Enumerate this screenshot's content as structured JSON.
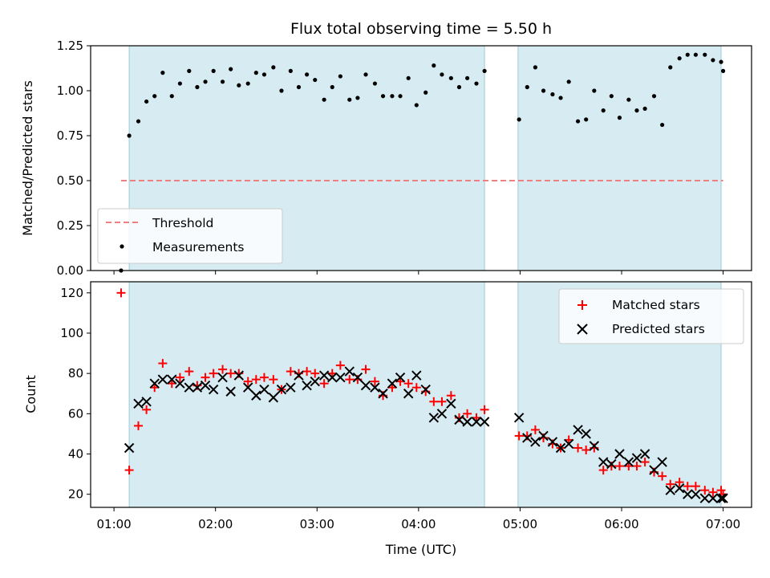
{
  "chart_data": {
    "type": "scatter",
    "title": "Flux total observing time = 5.50 h",
    "x_unit": "hours UTC",
    "xlim": [
      0.77,
      7.28
    ],
    "x_ticks": [
      {
        "value": 1,
        "label": "01:00"
      },
      {
        "value": 2,
        "label": "02:00"
      },
      {
        "value": 3,
        "label": "03:00"
      },
      {
        "value": 4,
        "label": "04:00"
      },
      {
        "value": 5,
        "label": "05:00"
      },
      {
        "value": 6,
        "label": "06:00"
      },
      {
        "value": 7,
        "label": "07:00"
      }
    ],
    "xlabel": "Time (UTC)",
    "shaded_intervals": [
      [
        1.15,
        4.65
      ],
      [
        4.98,
        6.98
      ]
    ],
    "top_panel": {
      "ylabel": "Matched/Predicted stars",
      "ylim": [
        0,
        1.25
      ],
      "y_ticks": [
        {
          "value": 0,
          "label": "0.00"
        },
        {
          "value": 0.25,
          "label": "0.25"
        },
        {
          "value": 0.5,
          "label": "0.50"
        },
        {
          "value": 0.75,
          "label": "0.75"
        },
        {
          "value": 1.0,
          "label": "1.00"
        },
        {
          "value": 1.25,
          "label": "1.25"
        }
      ],
      "threshold": {
        "name": "Threshold",
        "y": 0.5,
        "x_range": [
          1.07,
          7.0
        ],
        "color": "#f08080"
      },
      "legend": {
        "position": "lower-left",
        "entries": [
          "Threshold",
          "Measurements"
        ]
      },
      "series": [
        {
          "name": "Measurements",
          "color": "#000000",
          "points": [
            [
              1.07,
              0.0
            ],
            [
              1.15,
              0.75
            ],
            [
              1.24,
              0.83
            ],
            [
              1.32,
              0.94
            ],
            [
              1.4,
              0.97
            ],
            [
              1.48,
              1.1
            ],
            [
              1.57,
              0.97
            ],
            [
              1.65,
              1.04
            ],
            [
              1.74,
              1.11
            ],
            [
              1.82,
              1.02
            ],
            [
              1.9,
              1.05
            ],
            [
              1.98,
              1.11
            ],
            [
              2.07,
              1.05
            ],
            [
              2.15,
              1.12
            ],
            [
              2.23,
              1.03
            ],
            [
              2.32,
              1.04
            ],
            [
              2.4,
              1.1
            ],
            [
              2.48,
              1.09
            ],
            [
              2.57,
              1.13
            ],
            [
              2.65,
              1.0
            ],
            [
              2.74,
              1.11
            ],
            [
              2.82,
              1.02
            ],
            [
              2.9,
              1.09
            ],
            [
              2.98,
              1.06
            ],
            [
              3.07,
              0.95
            ],
            [
              3.15,
              1.02
            ],
            [
              3.23,
              1.08
            ],
            [
              3.32,
              0.95
            ],
            [
              3.4,
              0.96
            ],
            [
              3.48,
              1.09
            ],
            [
              3.57,
              1.04
            ],
            [
              3.65,
              0.97
            ],
            [
              3.74,
              0.97
            ],
            [
              3.82,
              0.97
            ],
            [
              3.9,
              1.07
            ],
            [
              3.98,
              0.92
            ],
            [
              4.07,
              0.99
            ],
            [
              4.15,
              1.14
            ],
            [
              4.23,
              1.09
            ],
            [
              4.32,
              1.07
            ],
            [
              4.4,
              1.02
            ],
            [
              4.48,
              1.07
            ],
            [
              4.57,
              1.04
            ],
            [
              4.65,
              1.11
            ],
            [
              4.99,
              0.84
            ],
            [
              5.07,
              1.02
            ],
            [
              5.15,
              1.13
            ],
            [
              5.23,
              1.0
            ],
            [
              5.32,
              0.98
            ],
            [
              5.4,
              0.96
            ],
            [
              5.48,
              1.05
            ],
            [
              5.57,
              0.83
            ],
            [
              5.65,
              0.84
            ],
            [
              5.73,
              1.0
            ],
            [
              5.82,
              0.89
            ],
            [
              5.9,
              0.97
            ],
            [
              5.98,
              0.85
            ],
            [
              6.07,
              0.95
            ],
            [
              6.15,
              0.89
            ],
            [
              6.23,
              0.9
            ],
            [
              6.32,
              0.97
            ],
            [
              6.4,
              0.81
            ],
            [
              6.48,
              1.13
            ],
            [
              6.57,
              1.18
            ],
            [
              6.65,
              1.2
            ],
            [
              6.73,
              1.2
            ],
            [
              6.82,
              1.2
            ],
            [
              6.9,
              1.17
            ],
            [
              6.98,
              1.16
            ],
            [
              7.0,
              1.11
            ]
          ]
        }
      ]
    },
    "bottom_panel": {
      "ylabel": "Count",
      "ylim": [
        13.5,
        125.5
      ],
      "y_ticks": [
        {
          "value": 20,
          "label": "20"
        },
        {
          "value": 40,
          "label": "40"
        },
        {
          "value": 60,
          "label": "60"
        },
        {
          "value": 80,
          "label": "80"
        },
        {
          "value": 100,
          "label": "100"
        },
        {
          "value": 120,
          "label": "120"
        }
      ],
      "legend": {
        "position": "top-right",
        "entries": [
          "Matched stars",
          "Predicted stars"
        ]
      },
      "series": [
        {
          "name": "Matched stars",
          "marker": "plus",
          "color": "#ff0000",
          "points": [
            [
              1.07,
              120
            ],
            [
              1.15,
              32
            ],
            [
              1.24,
              54
            ],
            [
              1.32,
              62
            ],
            [
              1.4,
              73
            ],
            [
              1.48,
              85
            ],
            [
              1.57,
              75
            ],
            [
              1.65,
              78
            ],
            [
              1.74,
              81
            ],
            [
              1.82,
              74
            ],
            [
              1.9,
              78
            ],
            [
              1.98,
              80
            ],
            [
              2.07,
              82
            ],
            [
              2.15,
              80
            ],
            [
              2.23,
              80
            ],
            [
              2.32,
              76
            ],
            [
              2.4,
              77
            ],
            [
              2.48,
              78
            ],
            [
              2.57,
              77
            ],
            [
              2.65,
              72
            ],
            [
              2.74,
              81
            ],
            [
              2.82,
              80
            ],
            [
              2.9,
              81
            ],
            [
              2.98,
              80
            ],
            [
              3.07,
              75
            ],
            [
              3.15,
              80
            ],
            [
              3.23,
              84
            ],
            [
              3.32,
              77
            ],
            [
              3.4,
              77
            ],
            [
              3.48,
              82
            ],
            [
              3.57,
              76
            ],
            [
              3.65,
              69
            ],
            [
              3.74,
              73
            ],
            [
              3.82,
              76
            ],
            [
              3.9,
              75
            ],
            [
              3.98,
              73
            ],
            [
              4.07,
              71
            ],
            [
              4.15,
              66
            ],
            [
              4.23,
              66
            ],
            [
              4.32,
              69
            ],
            [
              4.4,
              58
            ],
            [
              4.48,
              60
            ],
            [
              4.57,
              58
            ],
            [
              4.65,
              62
            ],
            [
              4.99,
              49
            ],
            [
              5.07,
              49
            ],
            [
              5.15,
              52
            ],
            [
              5.23,
              48
            ],
            [
              5.32,
              45
            ],
            [
              5.4,
              43
            ],
            [
              5.48,
              47
            ],
            [
              5.57,
              43
            ],
            [
              5.65,
              42
            ],
            [
              5.73,
              43
            ],
            [
              5.82,
              32
            ],
            [
              5.9,
              34
            ],
            [
              5.98,
              34
            ],
            [
              6.07,
              34
            ],
            [
              6.15,
              34
            ],
            [
              6.23,
              36
            ],
            [
              6.32,
              31
            ],
            [
              6.4,
              29
            ],
            [
              6.48,
              25
            ],
            [
              6.57,
              26
            ],
            [
              6.65,
              24
            ],
            [
              6.73,
              24
            ],
            [
              6.82,
              22
            ],
            [
              6.9,
              21
            ],
            [
              6.98,
              22
            ],
            [
              7.0,
              20
            ]
          ]
        },
        {
          "name": "Predicted stars",
          "marker": "x",
          "color": "#000000",
          "points": [
            [
              1.15,
              43
            ],
            [
              1.24,
              65
            ],
            [
              1.32,
              66
            ],
            [
              1.4,
              75
            ],
            [
              1.48,
              77
            ],
            [
              1.57,
              77
            ],
            [
              1.65,
              75
            ],
            [
              1.74,
              73
            ],
            [
              1.82,
              73
            ],
            [
              1.9,
              74
            ],
            [
              1.98,
              72
            ],
            [
              2.07,
              78
            ],
            [
              2.15,
              71
            ],
            [
              2.23,
              79
            ],
            [
              2.32,
              73
            ],
            [
              2.4,
              69
            ],
            [
              2.48,
              72
            ],
            [
              2.57,
              68
            ],
            [
              2.65,
              72
            ],
            [
              2.74,
              73
            ],
            [
              2.82,
              79
            ],
            [
              2.9,
              74
            ],
            [
              2.98,
              76
            ],
            [
              3.07,
              79
            ],
            [
              3.15,
              78
            ],
            [
              3.23,
              78
            ],
            [
              3.32,
              81
            ],
            [
              3.4,
              78
            ],
            [
              3.48,
              74
            ],
            [
              3.57,
              73
            ],
            [
              3.65,
              70
            ],
            [
              3.74,
              75
            ],
            [
              3.82,
              78
            ],
            [
              3.9,
              70
            ],
            [
              3.98,
              79
            ],
            [
              4.07,
              72
            ],
            [
              4.15,
              58
            ],
            [
              4.23,
              60
            ],
            [
              4.32,
              65
            ],
            [
              4.4,
              57
            ],
            [
              4.48,
              56
            ],
            [
              4.57,
              56
            ],
            [
              4.65,
              56
            ],
            [
              4.99,
              58
            ],
            [
              5.07,
              48
            ],
            [
              5.15,
              46
            ],
            [
              5.23,
              49
            ],
            [
              5.32,
              46
            ],
            [
              5.4,
              43
            ],
            [
              5.48,
              45
            ],
            [
              5.57,
              52
            ],
            [
              5.65,
              50
            ],
            [
              5.73,
              44
            ],
            [
              5.82,
              36
            ],
            [
              5.9,
              35
            ],
            [
              5.98,
              40
            ],
            [
              6.07,
              36
            ],
            [
              6.15,
              38
            ],
            [
              6.23,
              40
            ],
            [
              6.32,
              32
            ],
            [
              6.4,
              36
            ],
            [
              6.48,
              22
            ],
            [
              6.57,
              23
            ],
            [
              6.65,
              20
            ],
            [
              6.73,
              20
            ],
            [
              6.82,
              18
            ],
            [
              6.9,
              18
            ],
            [
              6.98,
              18
            ],
            [
              7.0,
              18
            ]
          ]
        }
      ]
    }
  }
}
